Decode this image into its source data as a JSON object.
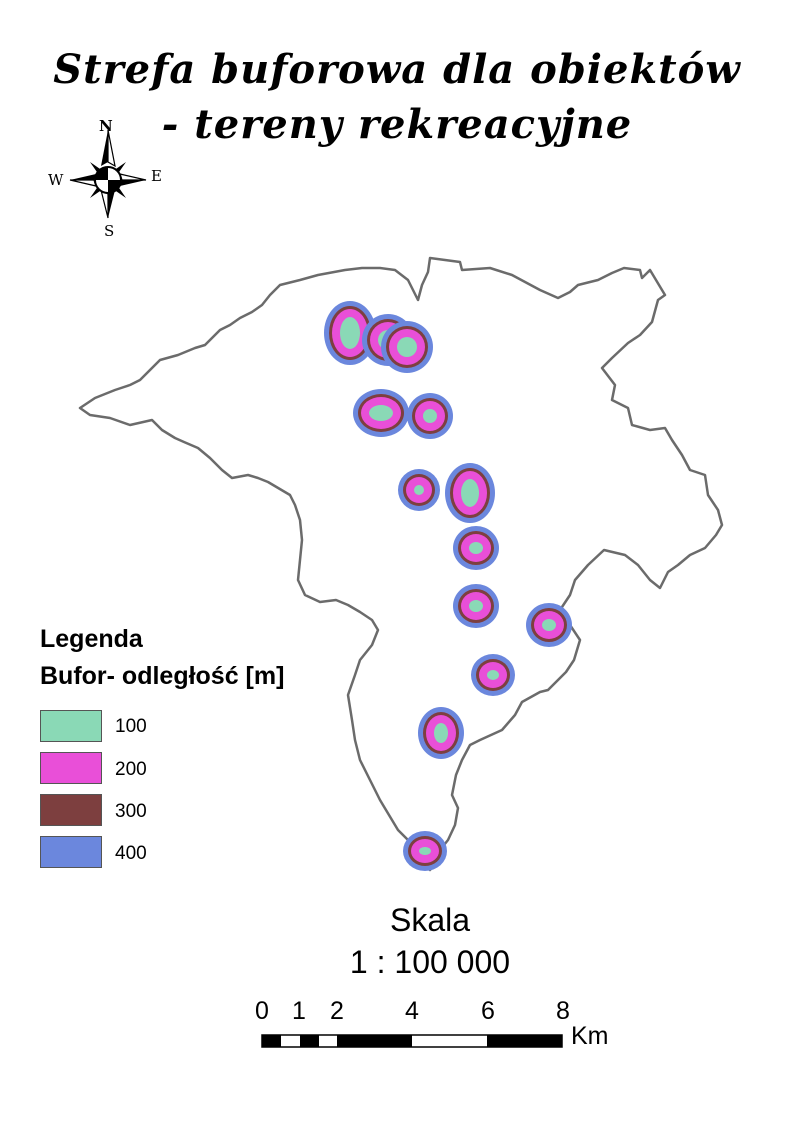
{
  "title_line1": "Strefa buforowa dla obiektów",
  "title_line2": "- tereny rekreacyjne",
  "compass": {
    "n": "N",
    "s": "S",
    "e": "E",
    "w": "W"
  },
  "boundary_color": "#6b6b6b",
  "legend": {
    "title": "Legenda",
    "subtitle": "Bufor- odległość [m]",
    "items": [
      {
        "label": "100",
        "color": "#8ad9b6"
      },
      {
        "label": "200",
        "color": "#e94fd8"
      },
      {
        "label": "300",
        "color": "#7d3f3f"
      },
      {
        "label": "400",
        "color": "#6b87dd"
      }
    ]
  },
  "scale": {
    "label": "Skala",
    "ratio": "1 : 100 000",
    "ticks": [
      "0",
      "1",
      "2",
      "4",
      "6",
      "8"
    ],
    "unit": "Km"
  }
}
